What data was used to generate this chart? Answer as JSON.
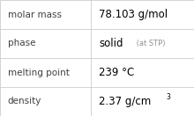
{
  "rows": [
    {
      "label": "molar mass",
      "value": "78.103 g/mol",
      "suffix": null,
      "superscript": null
    },
    {
      "label": "phase",
      "value": "solid",
      "suffix": " (at STP)",
      "superscript": null
    },
    {
      "label": "melting point",
      "value": "239 °C",
      "suffix": null,
      "superscript": null
    },
    {
      "label": "density",
      "value": "2.37 g/cm",
      "suffix": null,
      "superscript": "3"
    }
  ],
  "col_split": 0.47,
  "bg_color": "#ffffff",
  "border_color": "#cccccc",
  "label_color": "#404040",
  "value_color": "#000000",
  "suffix_color": "#909090",
  "label_fontsize": 7.5,
  "value_fontsize": 8.5,
  "suffix_fontsize": 6.0,
  "super_fontsize": 5.5,
  "font_family": "DejaVu Sans"
}
